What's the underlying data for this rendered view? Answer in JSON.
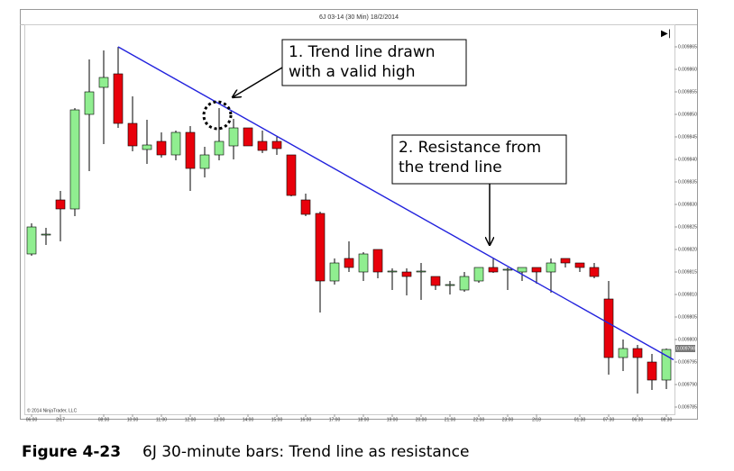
{
  "chart_data": {
    "type": "candlestick",
    "title": "6J 03-14 (30 Min) 18/2/2014",
    "categories": [
      "06:00",
      null,
      "2/17",
      null,
      null,
      "08:00",
      null,
      "10:00",
      null,
      "11:00",
      null,
      "12:00",
      null,
      "13:00",
      null,
      "14:00",
      null,
      "15:00",
      null,
      "16:00",
      null,
      "17:00",
      null,
      "18:00",
      null,
      "19:00",
      null,
      "20:00",
      null,
      "21:00",
      null,
      "22:00",
      null,
      "23:00",
      null,
      "2/18",
      null,
      null,
      "01:30",
      null,
      "07:30",
      null,
      "06:30",
      null,
      "08:30"
    ],
    "open": [
      0.009819,
      0.0098232,
      0.009831,
      0.009829,
      0.00985,
      0.009856,
      0.009859,
      0.009848,
      0.0098422,
      0.009844,
      0.009841,
      0.009846,
      0.009838,
      0.009841,
      0.009843,
      0.009847,
      0.009844,
      0.009844,
      0.009841,
      0.009831,
      0.009828,
      0.009813,
      0.009818,
      0.009815,
      0.00982,
      0.009815,
      0.009815,
      0.009815,
      0.009814,
      0.009812,
      0.009811,
      0.009813,
      0.009816,
      0.0098154,
      0.009815,
      0.009816,
      0.009815,
      0.009818,
      0.009817,
      0.009816,
      0.009809,
      0.009796,
      0.009798,
      0.009795,
      0.009791
    ],
    "high": [
      0.0098258,
      0.0098248,
      0.009833,
      0.0098514,
      0.0098622,
      0.0098642,
      0.009865,
      0.009854,
      0.0098488,
      0.009846,
      0.0098464,
      0.0098474,
      0.0098428,
      0.0098514,
      0.009849,
      0.009847,
      0.0098464,
      0.009845,
      0.009841,
      0.0098324,
      0.0098284,
      0.009818,
      0.0098218,
      0.0098194,
      0.00982,
      0.0098158,
      0.0098158,
      0.009817,
      0.009814,
      0.009813,
      0.009815,
      0.009816,
      0.009818,
      0.009816,
      0.009816,
      0.009816,
      0.009818,
      0.009818,
      0.009817,
      0.009817,
      0.009813,
      0.0098,
      0.0097988,
      0.0097968,
      0.009798
    ],
    "low": [
      0.0098186,
      0.009821,
      0.0098218,
      0.0098274,
      0.0098374,
      0.0098434,
      0.009847,
      0.0098418,
      0.009839,
      0.0098404,
      0.0098398,
      0.009833,
      0.009836,
      0.0098398,
      0.00984,
      0.009843,
      0.0098414,
      0.009841,
      0.0098318,
      0.0098274,
      0.009806,
      0.0098122,
      0.009815,
      0.009813,
      0.0098136,
      0.009811,
      0.0098098,
      0.0098088,
      0.009811,
      0.00981,
      0.0098106,
      0.0098126,
      0.0098148,
      0.009811,
      0.009813,
      0.0098124,
      0.0098104,
      0.009816,
      0.009815,
      0.0098136,
      0.0097922,
      0.009793,
      0.009788,
      0.0097888,
      0.009789
    ],
    "close": [
      0.009825,
      0.0098234,
      0.009829,
      0.009851,
      0.009855,
      0.0098582,
      0.009848,
      0.009843,
      0.0098432,
      0.009841,
      0.009846,
      0.009838,
      0.009841,
      0.009844,
      0.009847,
      0.009843,
      0.009842,
      0.0098424,
      0.009832,
      0.0098278,
      0.009813,
      0.009817,
      0.009816,
      0.009819,
      0.009815,
      0.0098152,
      0.009814,
      0.0098152,
      0.009812,
      0.0098122,
      0.009814,
      0.009816,
      0.009815,
      0.0098156,
      0.009816,
      0.009815,
      0.009817,
      0.009817,
      0.009816,
      0.009814,
      0.009796,
      0.009798,
      0.009796,
      0.009791,
      0.0097978
    ],
    "up_color": "#90ee90",
    "down_color": "#e8000b",
    "ylim": [
      0.0097834,
      0.00987
    ],
    "yticks": [
      0.009865,
      {
        "value": 0.00986,
        "label": "0.009860"
      },
      0.009855,
      {
        "value": 0.00985,
        "label": "0.009850"
      },
      0.009845,
      {
        "value": 0.00984,
        "label": "0.009840"
      },
      0.009835,
      {
        "value": 0.00983,
        "label": "0.009830"
      },
      0.009825,
      {
        "value": 0.00982,
        "label": "0.009820"
      },
      0.009815,
      {
        "value": 0.00981,
        "label": "0.009810"
      },
      0.009805,
      {
        "value": 0.0098,
        "label": "0.009800"
      },
      0.009795,
      {
        "value": 0.00979,
        "label": "0.009790"
      },
      0.009785
    ],
    "last_price": 0.009798,
    "trend_line": {
      "x": [
        6,
        44.5
      ],
      "values": [
        0.009865,
        0.0097955
      ],
      "color": "#2222dd"
    },
    "copyright": "© 2014 NinjaTrader, LLC",
    "annotations": [
      {
        "lines": [
          "1. Trend line drawn",
          "with a valid high"
        ]
      },
      {
        "lines": [
          "2. Resistance from",
          "the trend line"
        ]
      }
    ],
    "caption": {
      "label": "Figure 4-23",
      "text": "6J 30-minute bars: Trend line as resistance"
    }
  }
}
